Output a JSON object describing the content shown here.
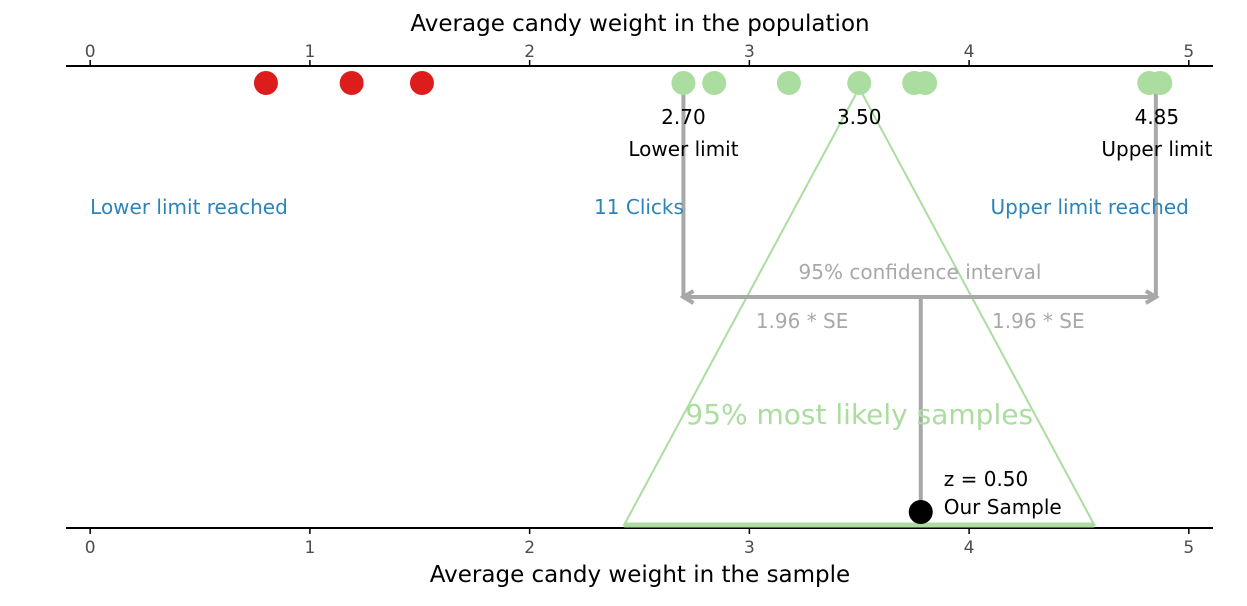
{
  "chart_data": {
    "type": "scatter",
    "top_axis": {
      "title": "Average candy weight in the population",
      "ticks": [
        0,
        1,
        2,
        3,
        4,
        5
      ],
      "range": [
        -0.11,
        5.11
      ]
    },
    "bottom_axis": {
      "title": "Average candy weight in the sample",
      "ticks": [
        0,
        1,
        2,
        3,
        4,
        5
      ],
      "range": [
        -0.11,
        5.11
      ]
    },
    "population_points_rejected": [
      0.8,
      1.19,
      1.51
    ],
    "population_points_accepted": [
      2.7,
      2.84,
      3.18,
      3.5,
      3.75,
      3.8,
      4.82,
      4.87
    ],
    "lower_limit": {
      "value": "2.70",
      "label": "Lower limit",
      "x": 2.7
    },
    "center": {
      "value": "3.50",
      "x": 3.5
    },
    "upper_limit": {
      "value": "4.85",
      "label": "Upper limit",
      "x": 4.85
    },
    "status": {
      "lower_reached": "Lower limit reached",
      "clicks": "11 Clicks",
      "upper_reached": "Upper limit reached"
    },
    "confidence_interval": {
      "label": "95% confidence interval",
      "left_se_label": "1.96 * SE",
      "right_se_label": "1.96 * SE",
      "from": 2.7,
      "to": 4.85
    },
    "sampling_distribution": {
      "label": "95% most likely samples",
      "apex_x": 3.5,
      "base_from": 2.43,
      "base_to": 4.57
    },
    "sample": {
      "x": 3.78,
      "z_label": "z = 0.50",
      "label": "Our Sample"
    },
    "colors": {
      "rejected": "#dd1c1c",
      "accepted": "#abdda0",
      "interval": "#a8a8a8",
      "status_text": "#2c84b8",
      "sample": "#000000"
    }
  }
}
